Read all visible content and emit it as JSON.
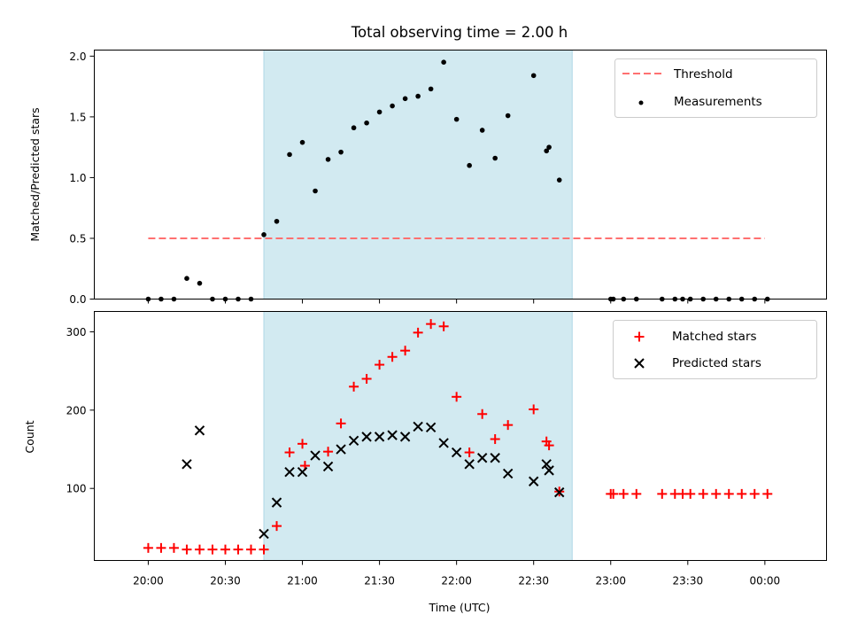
{
  "chart_data": {
    "type": "scatter",
    "title": "Total observing time = 2.00 h",
    "xlabel": "Time (UTC)",
    "xlim_minutes_since_2000": [
      -21,
      264
    ],
    "x_ticks": [
      {
        "label": "20:00",
        "min": 0
      },
      {
        "label": "20:30",
        "min": 30
      },
      {
        "label": "21:00",
        "min": 60
      },
      {
        "label": "21:30",
        "min": 90
      },
      {
        "label": "22:00",
        "min": 120
      },
      {
        "label": "22:30",
        "min": 150
      },
      {
        "label": "23:00",
        "min": 180
      },
      {
        "label": "23:30",
        "min": 210
      },
      {
        "label": "00:00",
        "min": 240
      }
    ],
    "shaded_span_minutes": [
      45,
      165
    ],
    "shade_color": "#add8e6",
    "panels": [
      {
        "id": "ratio",
        "ylabel": "Matched/Predicted stars",
        "ylim": [
          0,
          2.05
        ],
        "yticks": [
          {
            "v": 0,
            "label": "0.0"
          },
          {
            "v": 0.5,
            "label": "0.5"
          },
          {
            "v": 1,
            "label": "1.0"
          },
          {
            "v": 1.5,
            "label": "1.5"
          },
          {
            "v": 2,
            "label": "2.0"
          }
        ],
        "threshold": {
          "name": "Threshold",
          "value": 0.5,
          "x_range": [
            0,
            240
          ],
          "color": "#ff7070"
        },
        "series": [
          {
            "name": "Measurements",
            "marker": "dot",
            "color": "#000000",
            "points": [
              [
                0,
                0
              ],
              [
                5,
                0
              ],
              [
                10,
                0
              ],
              [
                15,
                0.17
              ],
              [
                20,
                0.13
              ],
              [
                25,
                0
              ],
              [
                30,
                0
              ],
              [
                35,
                0
              ],
              [
                40,
                0
              ],
              [
                45,
                0.53
              ],
              [
                50,
                0.64
              ],
              [
                55,
                1.19
              ],
              [
                60,
                1.29
              ],
              [
                65,
                0.89
              ],
              [
                70,
                1.15
              ],
              [
                75,
                1.21
              ],
              [
                80,
                1.41
              ],
              [
                85,
                1.45
              ],
              [
                90,
                1.54
              ],
              [
                95,
                1.59
              ],
              [
                100,
                1.65
              ],
              [
                105,
                1.67
              ],
              [
                110,
                1.73
              ],
              [
                115,
                1.95
              ],
              [
                120,
                1.48
              ],
              [
                125,
                1.1
              ],
              [
                130,
                1.39
              ],
              [
                135,
                1.16
              ],
              [
                140,
                1.51
              ],
              [
                150,
                1.84
              ],
              [
                155,
                1.22
              ],
              [
                156,
                1.25
              ],
              [
                160,
                0.98
              ],
              [
                180,
                0
              ],
              [
                181,
                0
              ],
              [
                185,
                0
              ],
              [
                190,
                0
              ],
              [
                200,
                0
              ],
              [
                205,
                0
              ],
              [
                208,
                0
              ],
              [
                211,
                0
              ],
              [
                216,
                0
              ],
              [
                221,
                0
              ],
              [
                226,
                0
              ],
              [
                231,
                0
              ],
              [
                236,
                0
              ],
              [
                241,
                0
              ]
            ]
          }
        ]
      },
      {
        "id": "counts",
        "ylabel": "Count",
        "ylim": [
          8,
          326
        ],
        "yticks": [
          {
            "v": 100,
            "label": "100"
          },
          {
            "v": 200,
            "label": "200"
          },
          {
            "v": 300,
            "label": "300"
          }
        ],
        "series": [
          {
            "name": "Matched stars",
            "marker": "plus",
            "color": "#ff0000",
            "points": [
              [
                0,
                24
              ],
              [
                5,
                24
              ],
              [
                10,
                24
              ],
              [
                15,
                22
              ],
              [
                20,
                22
              ],
              [
                25,
                22
              ],
              [
                30,
                22
              ],
              [
                35,
                22
              ],
              [
                40,
                22
              ],
              [
                45,
                22
              ],
              [
                50,
                52
              ],
              [
                55,
                146
              ],
              [
                60,
                157
              ],
              [
                61,
                129
              ],
              [
                70,
                147
              ],
              [
                75,
                183
              ],
              [
                80,
                230
              ],
              [
                85,
                240
              ],
              [
                90,
                258
              ],
              [
                95,
                268
              ],
              [
                100,
                276
              ],
              [
                105,
                299
              ],
              [
                110,
                310
              ],
              [
                115,
                307
              ],
              [
                120,
                217
              ],
              [
                125,
                146
              ],
              [
                130,
                195
              ],
              [
                135,
                163
              ],
              [
                140,
                181
              ],
              [
                150,
                201
              ],
              [
                155,
                160
              ],
              [
                156,
                155
              ],
              [
                160,
                96
              ],
              [
                180,
                93
              ],
              [
                181,
                93
              ],
              [
                185,
                93
              ],
              [
                190,
                93
              ],
              [
                200,
                93
              ],
              [
                205,
                93
              ],
              [
                208,
                93
              ],
              [
                211,
                93
              ],
              [
                216,
                93
              ],
              [
                221,
                93
              ],
              [
                226,
                93
              ],
              [
                231,
                93
              ],
              [
                236,
                93
              ],
              [
                241,
                93
              ]
            ]
          },
          {
            "name": "Predicted stars",
            "marker": "x",
            "color": "#000000",
            "points": [
              [
                15,
                131
              ],
              [
                20,
                174
              ],
              [
                45,
                42
              ],
              [
                50,
                82
              ],
              [
                55,
                121
              ],
              [
                60,
                121
              ],
              [
                65,
                142
              ],
              [
                70,
                128
              ],
              [
                75,
                150
              ],
              [
                80,
                161
              ],
              [
                85,
                166
              ],
              [
                90,
                166
              ],
              [
                95,
                168
              ],
              [
                100,
                166
              ],
              [
                105,
                179
              ],
              [
                110,
                178
              ],
              [
                115,
                158
              ],
              [
                120,
                146
              ],
              [
                125,
                131
              ],
              [
                130,
                139
              ],
              [
                135,
                139
              ],
              [
                140,
                119
              ],
              [
                150,
                109
              ],
              [
                155,
                131
              ],
              [
                156,
                123
              ],
              [
                160,
                95
              ]
            ]
          }
        ]
      }
    ]
  }
}
